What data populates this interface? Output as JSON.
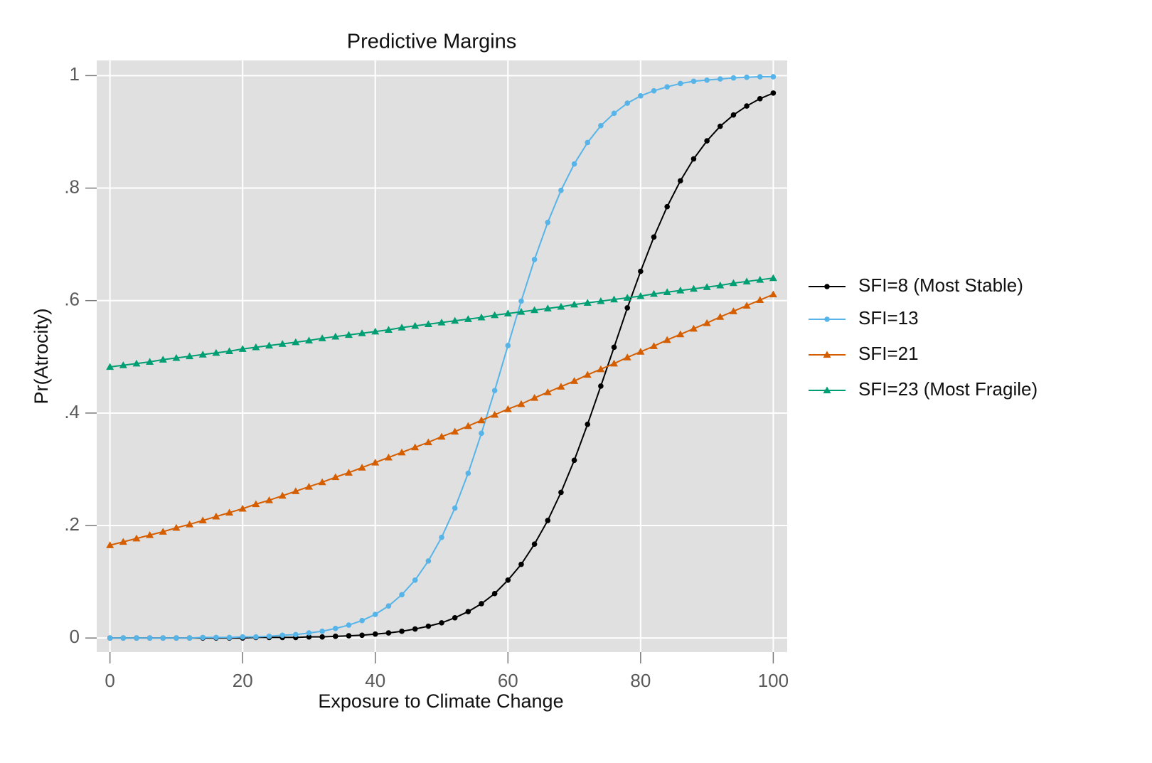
{
  "chart_data": {
    "type": "line",
    "title": "Predictive Margins",
    "x_label": "Exposure to Climate Change",
    "y_label": "Pr(Atrocity)",
    "x": [
      0,
      2,
      4,
      6,
      8,
      10,
      12,
      14,
      16,
      18,
      20,
      22,
      24,
      26,
      28,
      30,
      32,
      34,
      36,
      38,
      40,
      42,
      44,
      46,
      48,
      50,
      52,
      54,
      56,
      58,
      60,
      62,
      64,
      66,
      68,
      70,
      72,
      74,
      76,
      78,
      80,
      82,
      84,
      86,
      88,
      90,
      92,
      94,
      96,
      98,
      100
    ],
    "series": [
      {
        "name": "SFI=8 (Most Stable)",
        "color": "#000000",
        "marker": "circle",
        "values": [
          0,
          0,
          0,
          0,
          0,
          0,
          0,
          0,
          0,
          0,
          0,
          0.001,
          0.001,
          0.001,
          0.001,
          0.002,
          0.002,
          0.003,
          0.004,
          0.005,
          0.007,
          0.009,
          0.012,
          0.016,
          0.021,
          0.027,
          0.036,
          0.047,
          0.061,
          0.079,
          0.103,
          0.131,
          0.167,
          0.209,
          0.259,
          0.316,
          0.38,
          0.448,
          0.517,
          0.587,
          0.652,
          0.713,
          0.767,
          0.813,
          0.852,
          0.884,
          0.91,
          0.93,
          0.946,
          0.959,
          0.969
        ]
      },
      {
        "name": "SFI=13",
        "color": "#56b4e9",
        "marker": "circle",
        "values": [
          0,
          0,
          0,
          0,
          0,
          0,
          0,
          0.001,
          0.001,
          0.001,
          0.002,
          0.002,
          0.003,
          0.005,
          0.006,
          0.009,
          0.012,
          0.017,
          0.023,
          0.031,
          0.042,
          0.057,
          0.077,
          0.103,
          0.137,
          0.179,
          0.231,
          0.293,
          0.364,
          0.44,
          0.52,
          0.599,
          0.673,
          0.739,
          0.796,
          0.843,
          0.881,
          0.911,
          0.933,
          0.951,
          0.964,
          0.973,
          0.98,
          0.986,
          0.99,
          0.992,
          0.994,
          0.996,
          0.997,
          0.998,
          0.998
        ]
      },
      {
        "name": "SFI=21",
        "color": "#d55e00",
        "marker": "triangle",
        "values": [
          0.165,
          0.171,
          0.177,
          0.183,
          0.189,
          0.196,
          0.202,
          0.209,
          0.216,
          0.223,
          0.23,
          0.238,
          0.245,
          0.253,
          0.261,
          0.269,
          0.277,
          0.286,
          0.294,
          0.303,
          0.312,
          0.321,
          0.33,
          0.339,
          0.348,
          0.358,
          0.367,
          0.377,
          0.387,
          0.397,
          0.407,
          0.416,
          0.427,
          0.437,
          0.447,
          0.457,
          0.468,
          0.478,
          0.488,
          0.499,
          0.509,
          0.519,
          0.53,
          0.54,
          0.55,
          0.56,
          0.571,
          0.581,
          0.591,
          0.601,
          0.611
        ]
      },
      {
        "name": "SFI=23 (Most Fragile)",
        "color": "#009e73",
        "marker": "triangle",
        "values": [
          0.482,
          0.485,
          0.488,
          0.491,
          0.495,
          0.498,
          0.501,
          0.504,
          0.507,
          0.51,
          0.514,
          0.517,
          0.52,
          0.523,
          0.526,
          0.529,
          0.533,
          0.536,
          0.539,
          0.542,
          0.545,
          0.548,
          0.552,
          0.555,
          0.558,
          0.561,
          0.564,
          0.567,
          0.57,
          0.574,
          0.577,
          0.58,
          0.583,
          0.586,
          0.589,
          0.593,
          0.596,
          0.599,
          0.602,
          0.605,
          0.608,
          0.612,
          0.615,
          0.618,
          0.621,
          0.624,
          0.627,
          0.631,
          0.634,
          0.637,
          0.64
        ]
      }
    ],
    "xlim": [
      -2,
      102.1
    ],
    "ylim": [
      -0.025,
      1.027
    ],
    "xticks": [
      0,
      20,
      40,
      60,
      80,
      100
    ],
    "yticks": [
      0,
      {
        "value": 0.2,
        "label": ".2"
      },
      {
        "value": 0.4,
        "label": ".4"
      },
      {
        "value": 0.6,
        "label": ".6"
      },
      {
        "value": 0.8,
        "label": ".8"
      },
      1
    ],
    "grid": true,
    "legend": "right"
  }
}
